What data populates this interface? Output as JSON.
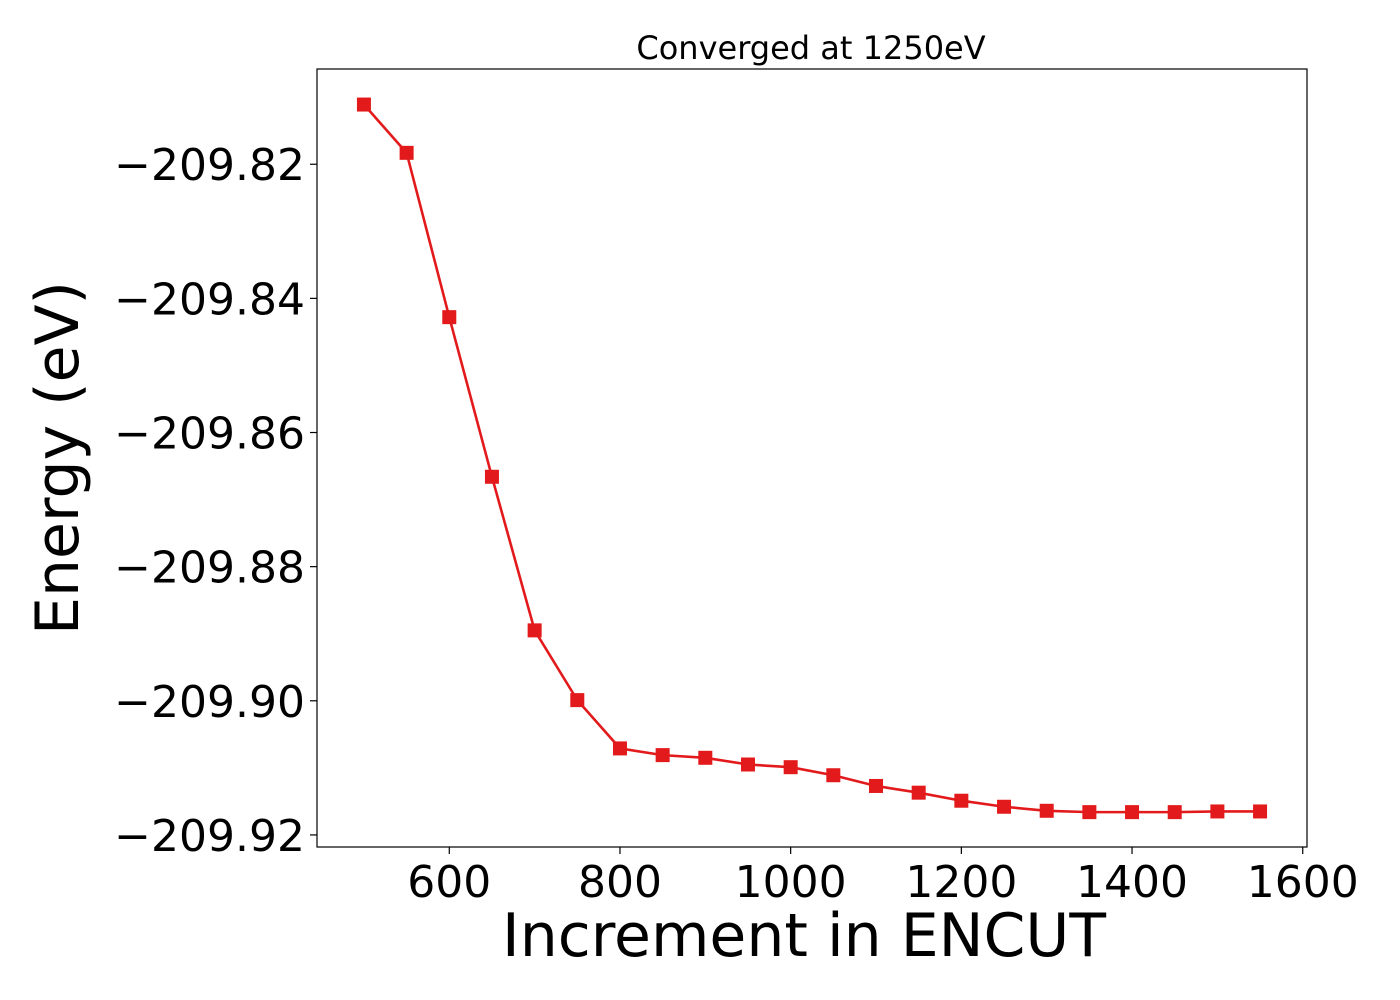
{
  "chart_data": {
    "type": "line",
    "title": "Converged at 1250eV",
    "xlabel": "Increment in ENCUT",
    "ylabel": "Energy (eV)",
    "xlim": [
      445,
      1605
    ],
    "ylim": [
      -209.9218,
      -209.8058
    ],
    "x_ticks": [
      600,
      800,
      1000,
      1200,
      1400,
      1600
    ],
    "x_tick_labels": [
      "600",
      "800",
      "1000",
      "1200",
      "1400",
      "1600"
    ],
    "y_ticks": [
      -209.82,
      -209.84,
      -209.86,
      -209.88,
      -209.9,
      -209.92
    ],
    "y_tick_labels": [
      "−209.82",
      "−209.84",
      "−209.86",
      "−209.88",
      "−209.90",
      "−209.92"
    ],
    "grid": false,
    "legend": "none",
    "series": [
      {
        "color": "#e31a1c",
        "marker": "square",
        "x": [
          500,
          550,
          600,
          650,
          700,
          750,
          800,
          850,
          900,
          950,
          1000,
          1050,
          1100,
          1150,
          1200,
          1250,
          1300,
          1350,
          1400,
          1450,
          1500,
          1550
        ],
        "y": [
          -209.8111,
          -209.8183,
          -209.8428,
          -209.8666,
          -209.8895,
          -209.8999,
          -209.9071,
          -209.9081,
          -209.9085,
          -209.9095,
          -209.9099,
          -209.9111,
          -209.9127,
          -209.9137,
          -209.9149,
          -209.9158,
          -209.9164,
          -209.9166,
          -209.9166,
          -209.9166,
          -209.9165,
          -209.9165
        ]
      }
    ]
  }
}
